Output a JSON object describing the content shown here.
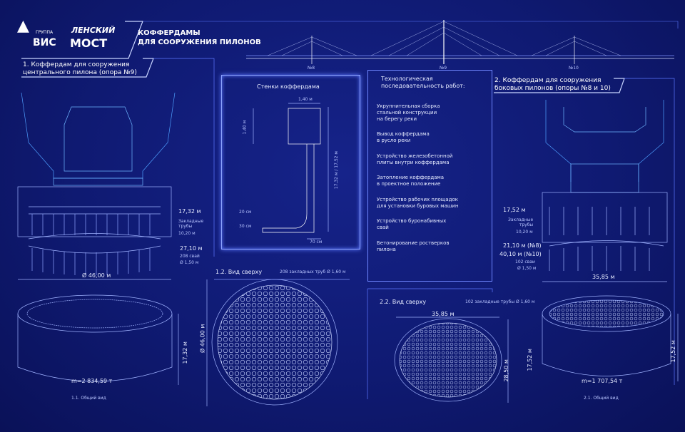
{
  "logos": {
    "vis_group": "ГРУППА",
    "vis": "ВИС",
    "lensky_1": "ЛЕНСКИЙ",
    "lensky_2": "МОСТ"
  },
  "title": {
    "line1": "КОФФЕРДАМЫ",
    "line2": "ДЛЯ СООРУЖЕНИЯ ПИЛОНОВ"
  },
  "bridge": {
    "labels": [
      "№8",
      "№9",
      "№10"
    ]
  },
  "section1": {
    "title1": "1. Коффердам для сооружения",
    "title2": "центрального пилона (опора №9)",
    "dim_height": "17,32 м",
    "pipes_label": "Закладные\nтрубы",
    "pipes_value": "10,20 м",
    "piles_len": "27,10 м",
    "piles_count": "208 свай",
    "piles_dia": "Ø 1,50 м",
    "diameter": "Ø 46,00 м",
    "height": "17,32 м",
    "mass": "m=2 834,59 т",
    "view_general": "1.1. Общий вид",
    "view_top": "1.2. Вид сверху",
    "top_pipes": "208 закладных труб Ø 1,60 м",
    "top_dia": "Ø 46,00 м"
  },
  "walls": {
    "title": "Стенки коффердама",
    "w1": "1,40 м",
    "h1": "1,40 м",
    "h_total": "17,32 м / 17,52 м",
    "d20": "20 см",
    "d30": "30 см",
    "d70": "70 см"
  },
  "sequence": {
    "title": "Технологическая\nпоследовательность работ:",
    "steps": [
      "Укрупнительная сборка\nстальной конструкции\nна берегу реки",
      "Вывод коффердама\nв русло реки",
      "Устройство железобетонной\nплиты внутри коффердама",
      "Затопление коффердама\nв проектное положение",
      "Устройство рабочих площадок\nдля установки буровых машин",
      "Устройство буронабивных\nсвай",
      "Бетонирование ростверков\nпилона"
    ]
  },
  "section2": {
    "title1": "2. Коффердам для сооружения",
    "title2": "боковых пилонов (опоры №8 и 10)",
    "dim_height": "17,52 м",
    "pipes_label": "Закладные\nтрубы",
    "pipes_value": "10,20 м",
    "piles_len8": "21,10 м (№8)",
    "piles_len10": "40,10 м (№10)",
    "piles_count": "102 сваи",
    "piles_dia": "Ø 1,50 м",
    "width": "35,85 м",
    "height": "17,52 м",
    "mass": "m=1 707,54 т",
    "view_general": "2.1. Общий вид",
    "view_top": "2.2. Вид сверху",
    "top_pipes": "102 закладные трубы Ø 1,60 м",
    "top_width": "35,85 м",
    "top_height": "28,50 м",
    "top_side": "17,52 м"
  },
  "colors": {
    "background": "#0f1a72",
    "line": "#8ea4ff",
    "glow": "#5d78ff"
  }
}
